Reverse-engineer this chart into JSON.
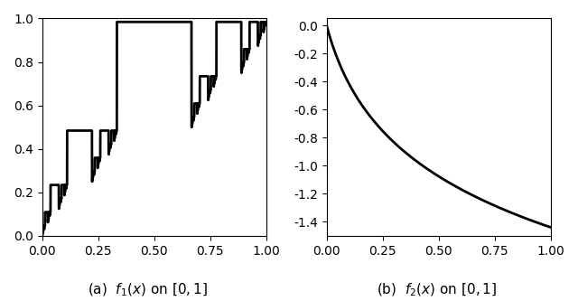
{
  "fig_width": 6.4,
  "fig_height": 3.33,
  "dpi": 100,
  "caption1": "(a)  $f_1(x)$ on $[0, 1]$",
  "caption2": "(b)  $f_2(x)$ on $[0, 1]$",
  "f1_xticks": [
    0.0,
    0.25,
    0.5,
    0.75,
    1.0
  ],
  "f1_yticks": [
    0.0,
    0.2,
    0.4,
    0.6,
    0.8,
    1.0
  ],
  "f2_xticks": [
    0.0,
    0.25,
    0.5,
    0.75,
    1.0
  ],
  "f2_yticks": [
    0.0,
    -0.2,
    -0.4,
    -0.6,
    -0.8,
    -1.0,
    -1.2,
    -1.4
  ],
  "line_color": "#000000",
  "line_width": 2.0,
  "cantor_levels": 6,
  "f2_a": -0.6,
  "f2_b": 0.1,
  "f2_c": -1.3815510558
}
